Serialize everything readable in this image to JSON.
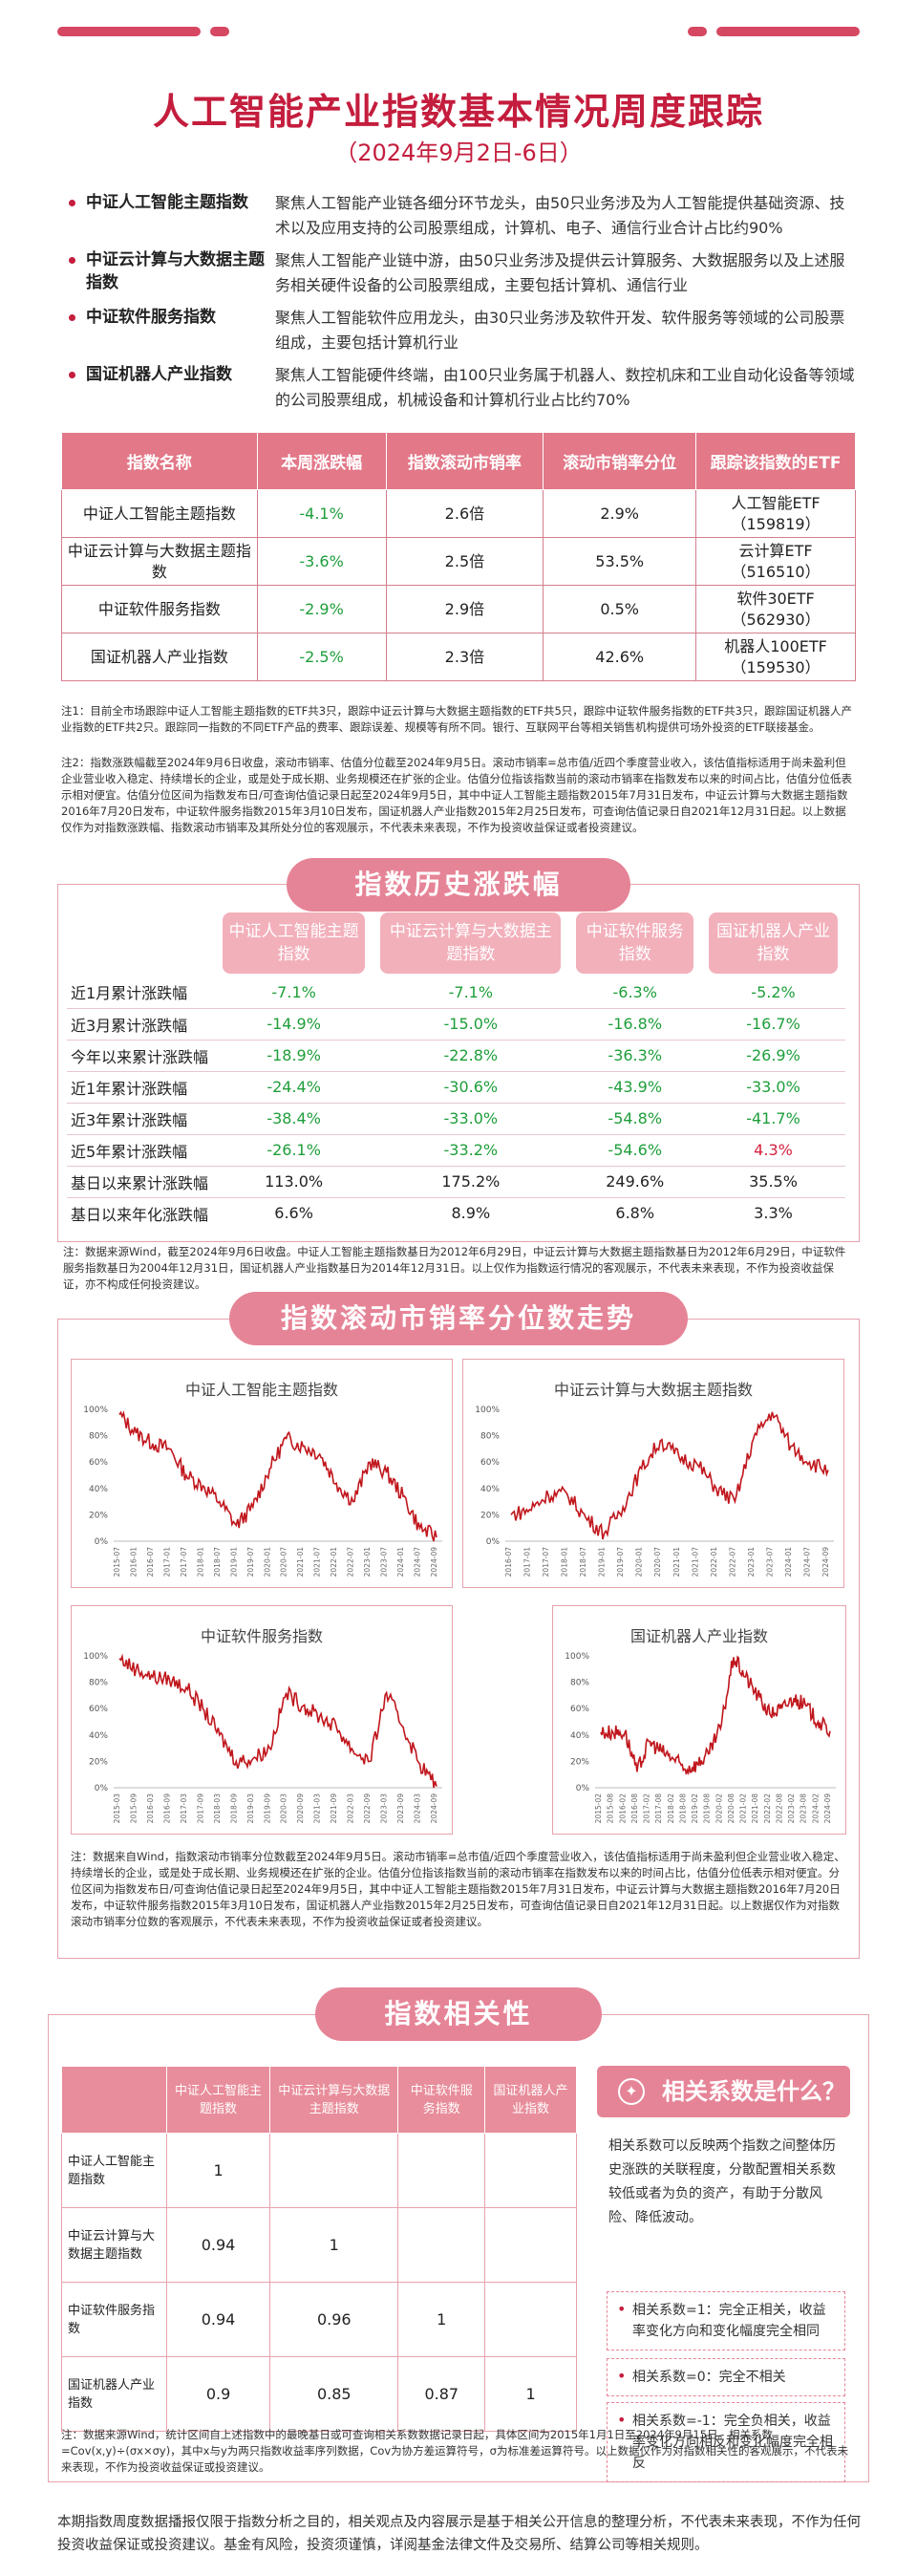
{
  "header": {
    "title": "人工智能产业指数基本情况周度跟踪",
    "subtitle": "（2024年9月2日-6日）"
  },
  "intro": [
    {
      "name": "中证人工智能主题指数",
      "desc": "聚焦人工智能产业链各细分环节龙头，由50只业务涉及为人工智能提供基础资源、技术以及应用支持的公司股票组成，计算机、电子、通信行业合计占比约90%"
    },
    {
      "name": "中证云计算与大数据主题指数",
      "desc": "聚焦人工智能产业链中游，由50只业务涉及提供云计算服务、大数据服务以及上述服务相关硬件设备的公司股票组成，主要包括计算机、通信行业"
    },
    {
      "name": "中证软件服务指数",
      "desc": "聚焦人工智能软件应用龙头，由30只业务涉及软件开发、软件服务等领域的公司股票组成，主要包括计算机行业"
    },
    {
      "name": "国证机器人产业指数",
      "desc": "聚焦人工智能硬件终端，由100只业务属于机器人、数控机床和工业自动化设备等领域的公司股票组成，机械设备和计算机行业占比约70%"
    }
  ],
  "table1": {
    "headers": [
      "指数名称",
      "本周涨跌幅",
      "指数滚动市销率",
      "滚动市销率分位",
      "跟踪该指数的ETF"
    ],
    "rows": [
      {
        "name": "中证人工智能主题指数",
        "chg": "-4.1%",
        "ps": "2.6倍",
        "pct": "2.9%",
        "etf": "人工智能ETF",
        "code": "（159819）"
      },
      {
        "name": "中证云计算与大数据主题指数",
        "chg": "-3.6%",
        "ps": "2.5倍",
        "pct": "53.5%",
        "etf": "云计算ETF",
        "code": "（516510）"
      },
      {
        "name": "中证软件服务指数",
        "chg": "-2.9%",
        "ps": "2.9倍",
        "pct": "0.5%",
        "etf": "软件30ETF",
        "code": "（562930）"
      },
      {
        "name": "国证机器人产业指数",
        "chg": "-2.5%",
        "ps": "2.3倍",
        "pct": "42.6%",
        "etf": "机器人100ETF",
        "code": "（159530）"
      }
    ]
  },
  "note1": "注1：目前全市场跟踪中证人工智能主题指数的ETF共3只，跟踪中证云计算与大数据主题指数的ETF共5只，跟踪中证软件服务指数的ETF共3只，跟踪国证机器人产业指数的ETF共2只。跟踪同一指数的不同ETF产品的费率、跟踪误差、规模等有所不同。银行、互联网平台等相关销售机构提供可场外投资的ETF联接基金。",
  "note2": "注2：指数涨跌幅截至2024年9月6日收盘，滚动市销率、估值分位截至2024年9月5日。滚动市销率=总市值/近四个季度营业收入，该估值指标适用于尚未盈利但企业营业收入稳定、持续增长的企业，或是处于成长期、业务规模还在扩张的企业。估值分位指该指数当前的滚动市销率在指数发布以来的时间占比，估值分位低表示相对便宜。估值分位区间为指数发布日/可查询估值记录日起至2024年9月5日，其中中证人工智能主题指数2015年7月31日发布，中证云计算与大数据主题指数2016年7月20日发布，中证软件服务指数2015年3月10日发布，国证机器人产业指数2015年2月25日发布，可查询估值记录日自2021年12月31日起。以上数据仅作为对指数涨跌幅、指数滚动市销率及其所处分位的客观展示，不代表未来表现，不作为投资收益保证或者投资建议。",
  "section2": {
    "title": "指数历史涨跌幅",
    "headers": [
      "中证人工智能主题指数",
      "中证云计算与大数据主题指数",
      "中证软件服务指数",
      "国证机器人产业指数"
    ],
    "rows": [
      {
        "label": "近1月累计涨跌幅",
        "v": [
          "-7.1%",
          "-7.1%",
          "-6.3%",
          "-5.2%"
        ]
      },
      {
        "label": "近3月累计涨跌幅",
        "v": [
          "-14.9%",
          "-15.0%",
          "-16.8%",
          "-16.7%"
        ]
      },
      {
        "label": "今年以来累计涨跌幅",
        "v": [
          "-18.9%",
          "-22.8%",
          "-36.3%",
          "-26.9%"
        ]
      },
      {
        "label": "近1年累计涨跌幅",
        "v": [
          "-24.4%",
          "-30.6%",
          "-43.9%",
          "-33.0%"
        ]
      },
      {
        "label": "近3年累计涨跌幅",
        "v": [
          "-38.4%",
          "-33.0%",
          "-54.8%",
          "-41.7%"
        ]
      },
      {
        "label": "近5年累计涨跌幅",
        "v": [
          "-26.1%",
          "-33.2%",
          "-54.6%",
          "4.3%"
        ]
      },
      {
        "label": "基日以来累计涨跌幅",
        "v": [
          "113.0%",
          "175.2%",
          "249.6%",
          "35.5%"
        ]
      },
      {
        "label": "基日以来年化涨跌幅",
        "v": [
          "6.6%",
          "8.9%",
          "6.8%",
          "3.3%"
        ]
      }
    ],
    "note": "注：数据来源Wind，截至2024年9月6日收盘。中证人工智能主题指数基日为2012年6月29日，中证云计算与大数据主题指数基日为2012年6月29日，中证软件服务指数基日为2004年12月31日，国证机器人产业指数基日为2014年12月31日。以上仅作为指数运行情况的客观展示，不代表未来表现，不作为投资收益保证，亦不构成任何投资建议。"
  },
  "section3": {
    "title": "指数滚动市销率分位数走势",
    "note": "注：数据来自Wind，指数滚动市销率分位数截至2024年9月5日。滚动市销率=总市值/近四个季度营业收入，该估值指标适用于尚未盈利但企业营业收入稳定、持续增长的企业，或是处于成长期、业务规模还在扩张的企业。估值分位指该指数当前的滚动市销率在指数发布以来的时间占比，估值分位低表示相对便宜。分位区间为指数发布日/可查询估值记录日起至2024年9月5日，其中中证人工智能主题指数2015年7月31日发布，中证云计算与大数据主题指数2016年7月20日发布，中证软件服务指数2015年3月10日发布，国证机器人产业指数2015年2月25日发布，可查询估值记录日自2021年12月31日起。以上数据仅作为对指数滚动市销率分位数的客观展示，不代表未来表现，不作为投资收益保证或者投资建议。"
  },
  "chart_data": [
    {
      "type": "line",
      "title": "中证人工智能主题指数",
      "yticks": [
        "100%",
        "80%",
        "60%",
        "40%",
        "20%",
        "0%"
      ],
      "ylim": [
        0,
        100
      ],
      "color": "#c0161c",
      "x": [
        "2015-07",
        "2016-01",
        "2016-07",
        "2017-01",
        "2017-07",
        "2018-01",
        "2018-07",
        "2019-01",
        "2019-07",
        "2020-01",
        "2020-07",
        "2021-01",
        "2021-07",
        "2022-01",
        "2022-07",
        "2023-01",
        "2023-07",
        "2024-01",
        "2024-07",
        "2024-09"
      ],
      "values": [
        96,
        82,
        74,
        70,
        50,
        42,
        30,
        12,
        26,
        55,
        78,
        72,
        66,
        44,
        30,
        60,
        52,
        34,
        10,
        3
      ]
    },
    {
      "type": "line",
      "title": "中证云计算与大数据主题指数",
      "yticks": [
        "100%",
        "80%",
        "60%",
        "40%",
        "20%",
        "0%"
      ],
      "ylim": [
        0,
        100
      ],
      "color": "#c0161c",
      "x": [
        "2016-07",
        "2017-01",
        "2017-07",
        "2018-01",
        "2018-07",
        "2019-01",
        "2019-07",
        "2020-01",
        "2020-07",
        "2021-01",
        "2021-07",
        "2022-01",
        "2022-07",
        "2023-01",
        "2023-07",
        "2024-01",
        "2024-07",
        "2024-09"
      ],
      "values": [
        20,
        24,
        35,
        36,
        18,
        6,
        26,
        55,
        76,
        64,
        58,
        40,
        30,
        78,
        98,
        72,
        60,
        54
      ]
    },
    {
      "type": "line",
      "title": "中证软件服务指数",
      "yticks": [
        "100%",
        "80%",
        "60%",
        "40%",
        "20%",
        "0%"
      ],
      "ylim": [
        0,
        100
      ],
      "color": "#c0161c",
      "x": [
        "2015-03",
        "2015-09",
        "2016-03",
        "2016-09",
        "2017-03",
        "2017-09",
        "2018-03",
        "2018-09",
        "2019-03",
        "2019-09",
        "2020-03",
        "2020-09",
        "2021-03",
        "2021-09",
        "2022-03",
        "2022-09",
        "2023-03",
        "2023-09",
        "2024-03",
        "2024-09"
      ],
      "values": [
        98,
        90,
        84,
        82,
        76,
        60,
        40,
        20,
        22,
        30,
        72,
        62,
        54,
        46,
        28,
        20,
        72,
        46,
        18,
        1
      ]
    },
    {
      "type": "line",
      "title": "国证机器人产业指数",
      "yticks": [
        "100%",
        "80%",
        "60%",
        "40%",
        "20%",
        "0%"
      ],
      "ylim": [
        0,
        100
      ],
      "color": "#c0161c",
      "x": [
        "2015-02",
        "2015-08",
        "2016-02",
        "2016-08",
        "2017-02",
        "2017-08",
        "2018-02",
        "2018-08",
        "2019-02",
        "2019-08",
        "2020-02",
        "2020-08",
        "2021-02",
        "2021-08",
        "2022-02",
        "2022-08",
        "2023-02",
        "2023-08",
        "2024-02",
        "2024-09"
      ],
      "values": [
        42,
        42,
        42,
        12,
        35,
        28,
        22,
        14,
        18,
        26,
        48,
        99,
        84,
        70,
        56,
        60,
        68,
        62,
        50,
        43
      ]
    }
  ],
  "section4": {
    "title": "指数相关性",
    "headers": [
      "中证人工智能主题指数",
      "中证云计算与大数据主题指数",
      "中证软件服务指数",
      "国证机器人产业指数"
    ],
    "rows": [
      {
        "label": "中证人工智能主题指数",
        "v": [
          "1",
          "",
          "",
          ""
        ]
      },
      {
        "label": "中证云计算与大数据主题指数",
        "v": [
          "0.94",
          "1",
          "",
          ""
        ]
      },
      {
        "label": "中证软件服务指数",
        "v": [
          "0.94",
          "0.96",
          "1",
          ""
        ]
      },
      {
        "label": "国证机器人产业指数",
        "v": [
          "0.9",
          "0.85",
          "0.87",
          "1"
        ]
      }
    ],
    "box_title": "相关系数是什么？",
    "box_intro": "相关系数可以反映两个指数之间整体历史涨跌的关联程度，分散配置相关系数较低或者为负的资产，有助于分散风险、降低波动。",
    "items": [
      "相关系数=1：完全正相关，收益率变化方向和变化幅度完全相同",
      "相关系数=0：完全不相关",
      "相关系数=-1：完全负相关，收益率变化方向相反和变化幅度完全相反"
    ],
    "note": "注：数据来源Wind，统计区间自上述指数中的最晚基日或可查询相关系数数据记录日起，具体区间为2015年1月1日至2024年9月15日。相关系数=Cov(x,y)÷(σx×σy)，其中x与y为两只指数收益率序列数据，Cov为协方差运算符号，σ为标准差运算符号。以上数据仅作为对指数相关性的客观展示，不代表未来表现，不作为投资收益保证或投资建议。"
  },
  "footer": "本期指数周度数据播报仅限于指数分析之目的，相关观点及内容展示是基于相关公开信息的整理分析，不代表未来表现，不作为任何投资收益保证或投资建议。基金有风险，投资须谨慎，详阅基金法律文件及交易所、结算公司等相关规则。"
}
